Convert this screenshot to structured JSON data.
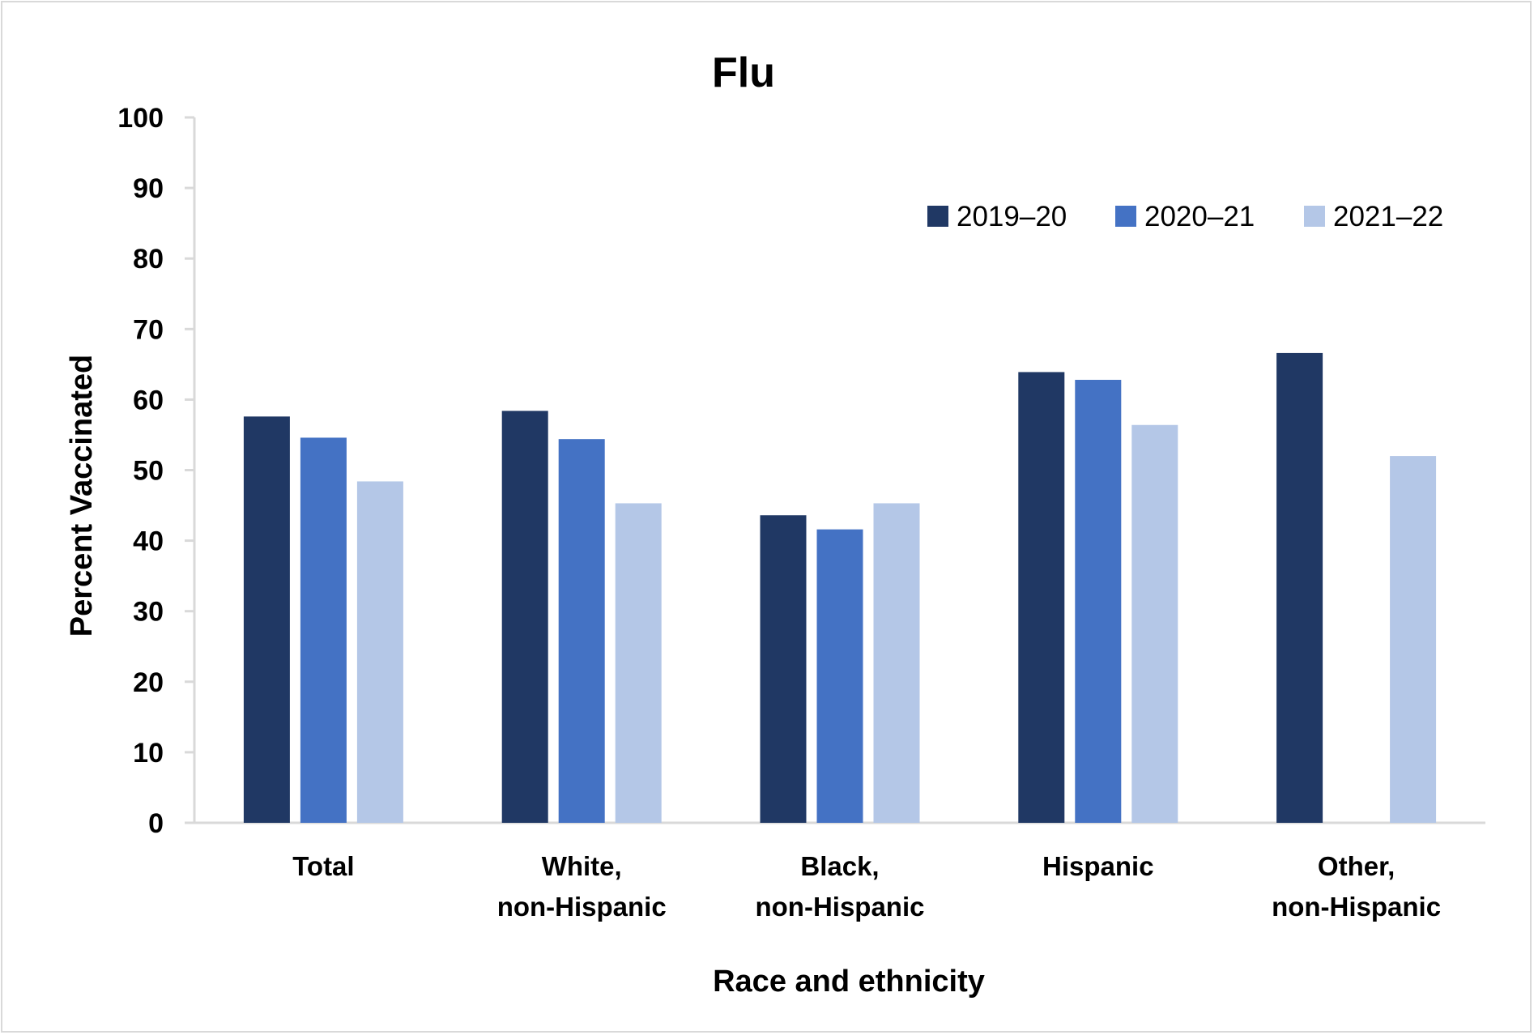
{
  "chart_data": {
    "type": "bar",
    "title": "Flu",
    "xlabel": "Race and ethnicity",
    "ylabel": "Percent Vaccinated",
    "ylim": [
      0,
      100
    ],
    "yticks": [
      "0",
      "10",
      "20",
      "30",
      "40",
      "50",
      "60",
      "70",
      "80",
      "90",
      "100"
    ],
    "categories": [
      [
        "Total"
      ],
      [
        "White,",
        "non-Hispanic"
      ],
      [
        "Black,",
        "non-Hispanic"
      ],
      [
        "Hispanic"
      ],
      [
        "Other,",
        "non-Hispanic"
      ]
    ],
    "series": [
      {
        "name": "2019–20",
        "color": "#203864",
        "values": [
          57.6,
          58.4,
          43.6,
          63.9,
          66.6
        ]
      },
      {
        "name": "2020–21",
        "color": "#4472c4",
        "values": [
          54.6,
          54.4,
          41.6,
          62.8,
          null
        ]
      },
      {
        "name": "2021–22",
        "color": "#b4c7e7",
        "values": [
          48.4,
          45.3,
          45.3,
          56.4,
          52.0
        ]
      }
    ],
    "legend_position": "top-right",
    "grid": false
  },
  "colors": {
    "axis": "#d9d9d9",
    "frame": "#d9d9d9",
    "text": "#000000"
  }
}
